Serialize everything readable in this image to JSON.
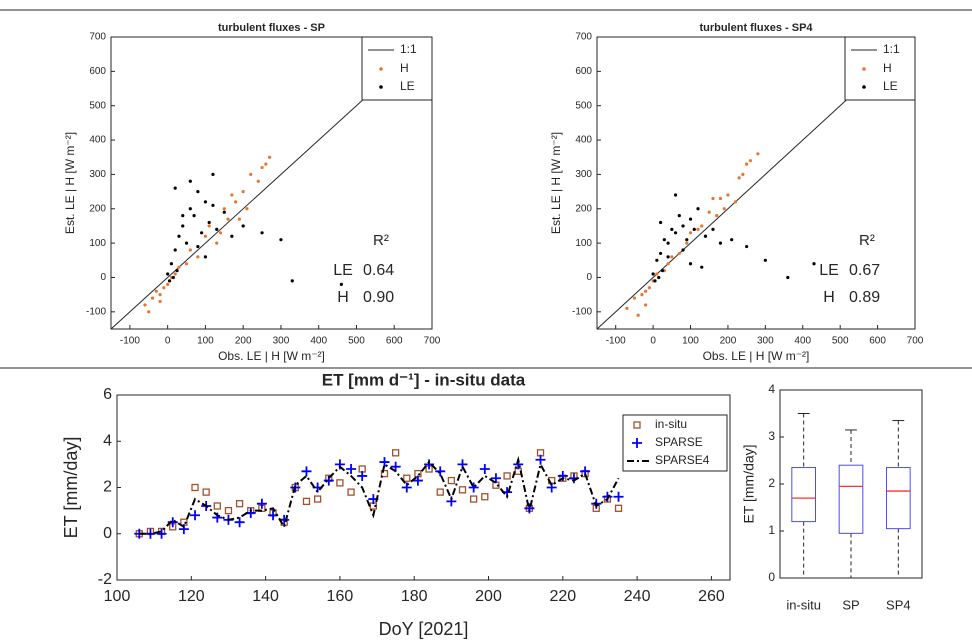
{
  "chart_data": [
    {
      "type": "scatter",
      "title": "turbulent fluxes - SP",
      "xlabel": "Obs. LE | H [W m⁻²]",
      "ylabel": "Est. LE | H [W m⁻²]",
      "xlim": [
        -150,
        700
      ],
      "ylim": [
        -150,
        700
      ],
      "xticks": [
        -100,
        0,
        100,
        200,
        300,
        400,
        500,
        600,
        700
      ],
      "yticks": [
        -100,
        0,
        100,
        200,
        300,
        400,
        500,
        600,
        700
      ],
      "reference_line": {
        "name": "1:1",
        "color": "#262626"
      },
      "series": [
        {
          "name": "H",
          "color": "#e8762d",
          "x": [
            -60,
            -40,
            -30,
            -20,
            -10,
            0,
            10,
            20,
            30,
            50,
            60,
            80,
            100,
            110,
            130,
            150,
            160,
            180,
            200,
            210,
            220,
            240,
            250,
            260,
            270,
            190,
            170,
            140,
            -50,
            -20
          ],
          "values": [
            -80,
            -60,
            -40,
            -50,
            -30,
            -20,
            0,
            10,
            30,
            40,
            80,
            60,
            120,
            150,
            100,
            200,
            170,
            220,
            250,
            200,
            300,
            280,
            320,
            330,
            350,
            170,
            240,
            130,
            -100,
            -70
          ]
        },
        {
          "name": "LE",
          "color": "#000000",
          "x": [
            0,
            10,
            20,
            30,
            40,
            50,
            60,
            70,
            80,
            90,
            100,
            110,
            120,
            130,
            150,
            170,
            200,
            250,
            300,
            20,
            40,
            60,
            80,
            100,
            120,
            5,
            15,
            25,
            460,
            330
          ],
          "values": [
            10,
            40,
            80,
            120,
            150,
            100,
            200,
            180,
            250,
            130,
            220,
            160,
            300,
            140,
            190,
            120,
            150,
            130,
            110,
            260,
            180,
            280,
            90,
            60,
            210,
            -10,
            0,
            20,
            -20,
            -10
          ]
        }
      ],
      "annotation": {
        "title": "R²",
        "labels": [
          "LE",
          "H"
        ],
        "values": [
          0.64,
          0.9
        ],
        "value_labels": [
          "0.64",
          "0.90"
        ]
      }
    },
    {
      "type": "scatter",
      "title": "turbulent fluxes - SP4",
      "xlabel": "Obs. LE | H [W m⁻²]",
      "ylabel": "Est. LE | H [W m⁻²]",
      "xlim": [
        -150,
        700
      ],
      "ylim": [
        -150,
        700
      ],
      "xticks": [
        -100,
        0,
        100,
        200,
        300,
        400,
        500,
        600,
        700
      ],
      "yticks": [
        -100,
        0,
        100,
        200,
        300,
        400,
        500,
        600,
        700
      ],
      "reference_line": {
        "name": "1:1",
        "color": "#262626"
      },
      "series": [
        {
          "name": "H",
          "color": "#e8762d",
          "x": [
            -70,
            -50,
            -30,
            -20,
            -10,
            0,
            10,
            30,
            40,
            50,
            70,
            90,
            100,
            120,
            140,
            150,
            170,
            180,
            200,
            220,
            230,
            240,
            250,
            260,
            280,
            190,
            160,
            130,
            -40,
            -20
          ],
          "values": [
            -90,
            -60,
            -50,
            -40,
            -30,
            -10,
            10,
            20,
            40,
            60,
            70,
            100,
            130,
            140,
            120,
            190,
            180,
            230,
            240,
            220,
            290,
            300,
            330,
            340,
            360,
            200,
            230,
            150,
            -110,
            -80
          ]
        },
        {
          "name": "LE",
          "color": "#000000",
          "x": [
            0,
            10,
            20,
            30,
            40,
            50,
            60,
            70,
            80,
            90,
            100,
            110,
            120,
            140,
            160,
            180,
            210,
            250,
            300,
            20,
            40,
            60,
            80,
            100,
            130,
            5,
            15,
            25,
            430,
            360
          ],
          "values": [
            10,
            50,
            70,
            110,
            100,
            140,
            130,
            180,
            150,
            110,
            170,
            140,
            200,
            120,
            140,
            100,
            110,
            90,
            50,
            160,
            60,
            240,
            80,
            40,
            30,
            -10,
            0,
            20,
            40,
            0
          ]
        }
      ],
      "annotation": {
        "title": "R²",
        "labels": [
          "LE",
          "H"
        ],
        "values": [
          0.67,
          0.89
        ],
        "value_labels": [
          "0.67",
          "0.89"
        ]
      }
    },
    {
      "type": "line",
      "title": "ET [mm d⁻¹] - in-situ data",
      "xlabel": "DoY [2021]",
      "ylabel": "ET [mm/day]",
      "xlim": [
        100,
        265
      ],
      "ylim": [
        -2,
        6
      ],
      "xticks": [
        100,
        120,
        140,
        160,
        180,
        200,
        220,
        240,
        260
      ],
      "yticks": [
        -2,
        0,
        2,
        4,
        6
      ],
      "x": [
        106,
        109,
        112,
        115,
        118,
        121,
        124,
        127,
        130,
        133,
        136,
        139,
        142,
        145,
        148,
        151,
        154,
        157,
        160,
        163,
        166,
        169,
        172,
        175,
        178,
        181,
        184,
        187,
        190,
        193,
        196,
        199,
        202,
        205,
        208,
        211,
        214,
        217,
        220,
        223,
        226,
        229,
        232,
        235
      ],
      "series": [
        {
          "name": "in-situ",
          "color": "#a0522d",
          "marker": "square",
          "values": [
            0,
            0.1,
            0.1,
            0.3,
            0.5,
            2.0,
            1.8,
            1.2,
            1.0,
            1.3,
            1.0,
            1.1,
            0.9,
            0.5,
            2.0,
            1.4,
            1.5,
            2.4,
            2.2,
            1.8,
            2.8,
            1.2,
            2.6,
            3.5,
            2.4,
            2.6,
            2.8,
            1.8,
            2.3,
            1.9,
            1.5,
            1.6,
            2.1,
            2.5,
            2.7,
            1.1,
            3.5,
            2.3,
            2.4,
            2.5,
            2.6,
            1.1,
            1.5,
            1.1
          ]
        },
        {
          "name": "SPARSE",
          "color": "#0000ff",
          "marker": "plus",
          "values": [
            0,
            0,
            0,
            0.5,
            0.2,
            0.8,
            1.2,
            0.7,
            0.6,
            0.5,
            0.9,
            1.3,
            0.8,
            0.6,
            2.0,
            2.7,
            2.0,
            2.3,
            3.0,
            2.8,
            2.5,
            1.5,
            3.1,
            2.9,
            2.0,
            2.3,
            3.0,
            2.7,
            1.4,
            3.0,
            2.0,
            2.8,
            2.4,
            1.8,
            3.0,
            1.1,
            3.2,
            2.0,
            2.5,
            2.4,
            2.7,
            1.3,
            1.6,
            1.6
          ]
        },
        {
          "name": "SPARSE4",
          "color": "#000000",
          "marker": "dashdot",
          "values": [
            0,
            0,
            0.1,
            0.6,
            0.3,
            1.5,
            1.2,
            0.8,
            0.6,
            0.7,
            1.0,
            1.0,
            1.1,
            0.3,
            2.1,
            2.5,
            1.8,
            2.4,
            2.9,
            2.5,
            2.0,
            0.8,
            3.0,
            2.7,
            2.1,
            2.5,
            3.1,
            2.6,
            1.5,
            2.9,
            2.0,
            2.5,
            2.2,
            1.6,
            3.2,
            1.0,
            3.0,
            2.1,
            2.4,
            2.3,
            2.6,
            1.2,
            1.5,
            2.4
          ]
        }
      ]
    },
    {
      "type": "box",
      "ylabel": "ET [mm/day]",
      "ylim": [
        0,
        4
      ],
      "yticks": [
        0,
        1,
        2,
        3,
        4
      ],
      "categories": [
        "in-situ",
        "SP",
        "SP4"
      ],
      "box_color": "#4b4bff",
      "median_color": "#ff3030",
      "boxes": [
        {
          "min": 0,
          "q1": 1.2,
          "median": 1.7,
          "q3": 2.35,
          "max": 3.5
        },
        {
          "min": 0,
          "q1": 0.95,
          "median": 1.95,
          "q3": 2.4,
          "max": 3.15
        },
        {
          "min": 0,
          "q1": 1.05,
          "median": 1.85,
          "q3": 2.35,
          "max": 3.35
        }
      ]
    }
  ]
}
